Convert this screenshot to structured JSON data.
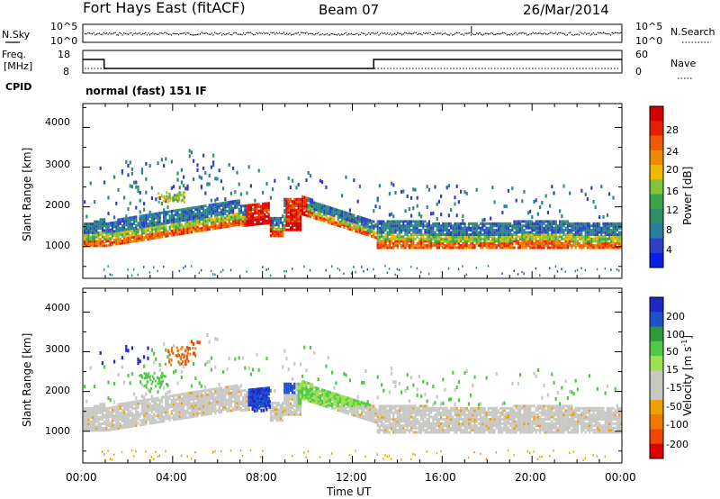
{
  "header": {
    "title": "Fort Hays East (fitACF)",
    "beam": "Beam 07",
    "date": "26/Mar/2014"
  },
  "status_panel": {
    "nsky_label": "N.Sky",
    "nsky_ticks": [
      "10^5",
      "10^0"
    ],
    "nsearch_label": "N.Search",
    "nsearch_ticks": [
      "10^5",
      "10^0"
    ],
    "freq_label": "Freq.",
    "freq_unit": "[MHz]",
    "freq_ticks": [
      "18",
      "8"
    ],
    "nave_label": "Nave",
    "nave_ticks": [
      "60",
      "0"
    ],
    "cpid_label": "CPID",
    "cpid_value": "normal (fast) 151 IF"
  },
  "colors": {
    "power_scale": [
      "#0a1ee6",
      "#2f3fc8",
      "#2a7fa0",
      "#2e8f6a",
      "#3aa64a",
      "#7fc43a",
      "#f0b800",
      "#f08a00",
      "#f05a00",
      "#e81e00",
      "#d40000"
    ],
    "velocity_scale": [
      "#1e28c8",
      "#1e50d2",
      "#2e9a3a",
      "#50c846",
      "#9ee050",
      "#c8c8c0",
      "#c8c8c0",
      "#f0a000",
      "#f07800",
      "#f04600",
      "#dc0000"
    ]
  },
  "chart_data": [
    {
      "type": "line",
      "name": "status",
      "x_range": [
        0,
        24
      ],
      "freq_mhz": {
        "x": [
          0,
          0.95,
          0.95,
          12.95,
          12.95,
          24
        ],
        "y": [
          14,
          14,
          10,
          10,
          14,
          14
        ]
      },
      "nsky_level": 2.5,
      "nave_level": 12
    },
    {
      "type": "heatmap",
      "name": "power",
      "ylabel": "Slant Range [km]",
      "ylim": [
        200,
        4600
      ],
      "yticks": [
        "4000",
        "3000",
        "2000",
        "1000"
      ],
      "colorbar_label": "Power [dB]",
      "colorbar_ticks": [
        "28",
        "24",
        "20",
        "16",
        "12",
        "8",
        "4"
      ]
    },
    {
      "type": "heatmap",
      "name": "velocity",
      "ylabel": "Slant Range [km]",
      "ylim": [
        200,
        4600
      ],
      "yticks": [
        "4000",
        "3000",
        "2000",
        "1000"
      ],
      "xlabel": "Time UT",
      "xticks": [
        "00:00",
        "04:00",
        "08:00",
        "12:00",
        "16:00",
        "20:00",
        "00:00"
      ],
      "colorbar_label": "Velocity [m s",
      "colorbar_label_sup": "-1",
      "colorbar_ticks": [
        "200",
        "100",
        "50",
        "15",
        "-15",
        "-50",
        "-100",
        "-200"
      ]
    }
  ]
}
